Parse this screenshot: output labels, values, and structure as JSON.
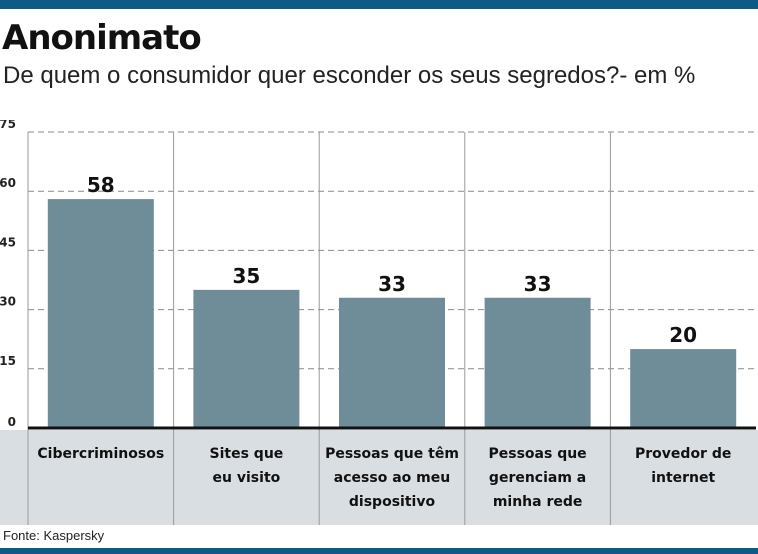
{
  "title": "Anonimato",
  "subtitle": "De quem o consumidor quer esconder os seus segredos?- em %",
  "source": "Fonte: Kaspersky",
  "colors": {
    "bar": "#6f8d99",
    "accent": "#0e5a86",
    "label_band": "#d9dee3"
  },
  "chart_data": {
    "type": "bar",
    "categories": [
      [
        "Cibercriminosos"
      ],
      [
        "Sites que",
        "eu visito"
      ],
      [
        "Pessoas que têm",
        "acesso ao meu",
        "dispositivo"
      ],
      [
        "Pessoas que",
        "gerenciam a",
        "minha rede"
      ],
      [
        "Provedor de",
        "internet"
      ]
    ],
    "values": [
      58,
      35,
      33,
      33,
      20
    ],
    "yticks": [
      0,
      15,
      30,
      45,
      60,
      75
    ],
    "ylim": [
      0,
      75
    ],
    "grid": true
  }
}
